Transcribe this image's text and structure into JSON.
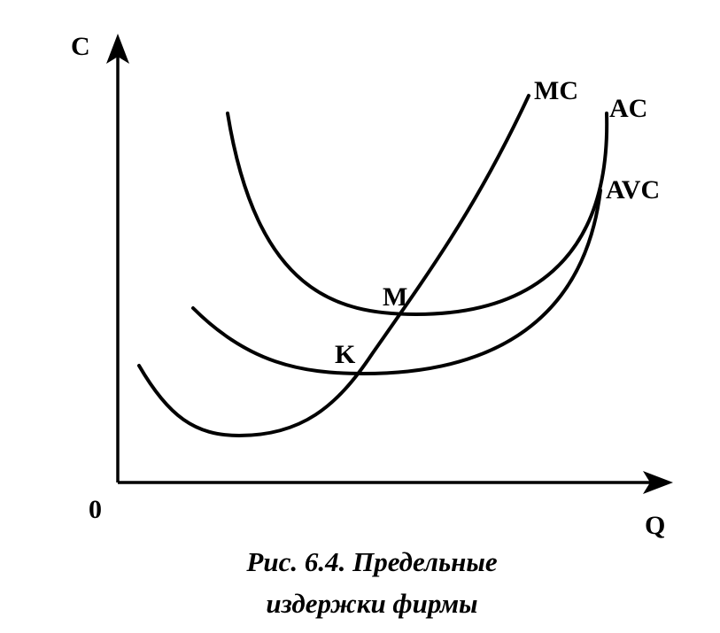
{
  "axes": {
    "y_label": "C",
    "x_label": "Q",
    "origin": "0"
  },
  "curves": {
    "mc": "MC",
    "ac": "AC",
    "avc": "AVC"
  },
  "points": {
    "m": "M",
    "k": "K"
  },
  "caption": {
    "line1": "Рис. 6.4. Предельные",
    "line2": "издержки фирмы"
  }
}
